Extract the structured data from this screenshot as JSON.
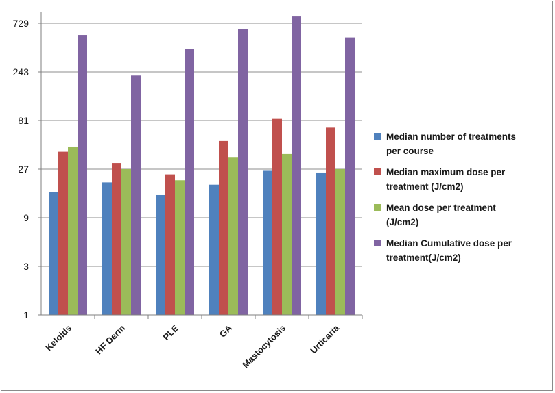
{
  "chart_data": {
    "type": "bar",
    "yscale": "log3",
    "yticks": [
      "1",
      "3",
      "9",
      "27",
      "81",
      "243",
      "729"
    ],
    "ylim": [
      1,
      1100
    ],
    "categories": [
      "Keloids",
      "HF Derm",
      "PLE",
      "GA",
      "Mastocytosis",
      "Urticaria"
    ],
    "series": [
      {
        "name": "Median number of treatments per course",
        "color": "#4f81bd",
        "values": [
          16,
          20,
          15,
          19,
          26,
          25
        ]
      },
      {
        "name": "Median maximum dose per treatment (J/cm2)",
        "color": "#c0504d",
        "values": [
          40,
          31,
          24,
          51,
          84,
          69
        ]
      },
      {
        "name": "Mean dose per treatment (J/cm2)",
        "color": "#9bbb59",
        "values": [
          45,
          27,
          21,
          35,
          38,
          27
        ]
      },
      {
        "name": "Median Cumulative dose per treatment(J/cm2)",
        "color": "#8064a2",
        "values": [
          560,
          224,
          411,
          640,
          850,
          530
        ]
      }
    ],
    "legend": {
      "placement": "right",
      "lines": [
        [
          "Median number of treatments",
          "per course"
        ],
        [
          "Median maximum dose per",
          "treatment (J/cm2)"
        ],
        [
          "Mean dose per treatment",
          "(J/cm2)"
        ],
        [
          "Median Cumulative dose per",
          "treatment(J/cm2)"
        ]
      ]
    },
    "grid": "horizontal",
    "title": "",
    "xlabel": "",
    "ylabel": ""
  }
}
